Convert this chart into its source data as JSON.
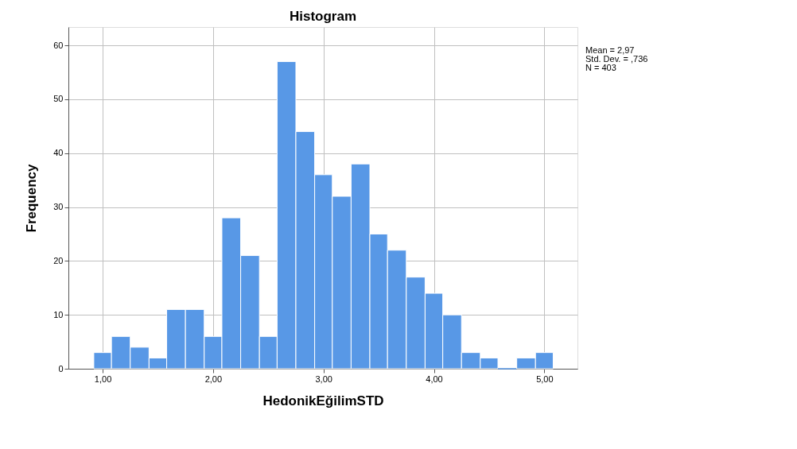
{
  "chart_data": {
    "type": "histogram",
    "title": "Histogram",
    "xlabel": "HedonikEğilimSTD",
    "ylabel": "Frequency",
    "bins": [
      0.92,
      1.08,
      1.25,
      1.42,
      1.58,
      1.75,
      1.92,
      2.08,
      2.25,
      2.42,
      2.58,
      2.75,
      2.92,
      3.08,
      3.25,
      3.42,
      3.58,
      3.75,
      3.92,
      4.08,
      4.25,
      4.42,
      4.58,
      4.75,
      4.92,
      5.08
    ],
    "values": [
      3,
      6,
      4,
      2,
      11,
      11,
      6,
      28,
      21,
      6,
      57,
      44,
      36,
      32,
      38,
      25,
      22,
      17,
      14,
      10,
      3,
      2,
      0,
      2,
      3
    ],
    "color": "#5898e6",
    "xlim": [
      0.69,
      5.3
    ],
    "ylim": [
      0,
      63.4
    ],
    "xticks": [
      {
        "value": 1,
        "label": "1,00"
      },
      {
        "value": 2,
        "label": "2,00"
      },
      {
        "value": 3,
        "label": "3,00"
      },
      {
        "value": 4,
        "label": "4,00"
      },
      {
        "value": 5,
        "label": "5,00"
      }
    ],
    "yticks": [
      0,
      10,
      20,
      30,
      40,
      50,
      60
    ],
    "grid": true,
    "annotations": [
      "Mean = 2,97",
      "Std. Dev. = ,736",
      "N = 403"
    ]
  }
}
